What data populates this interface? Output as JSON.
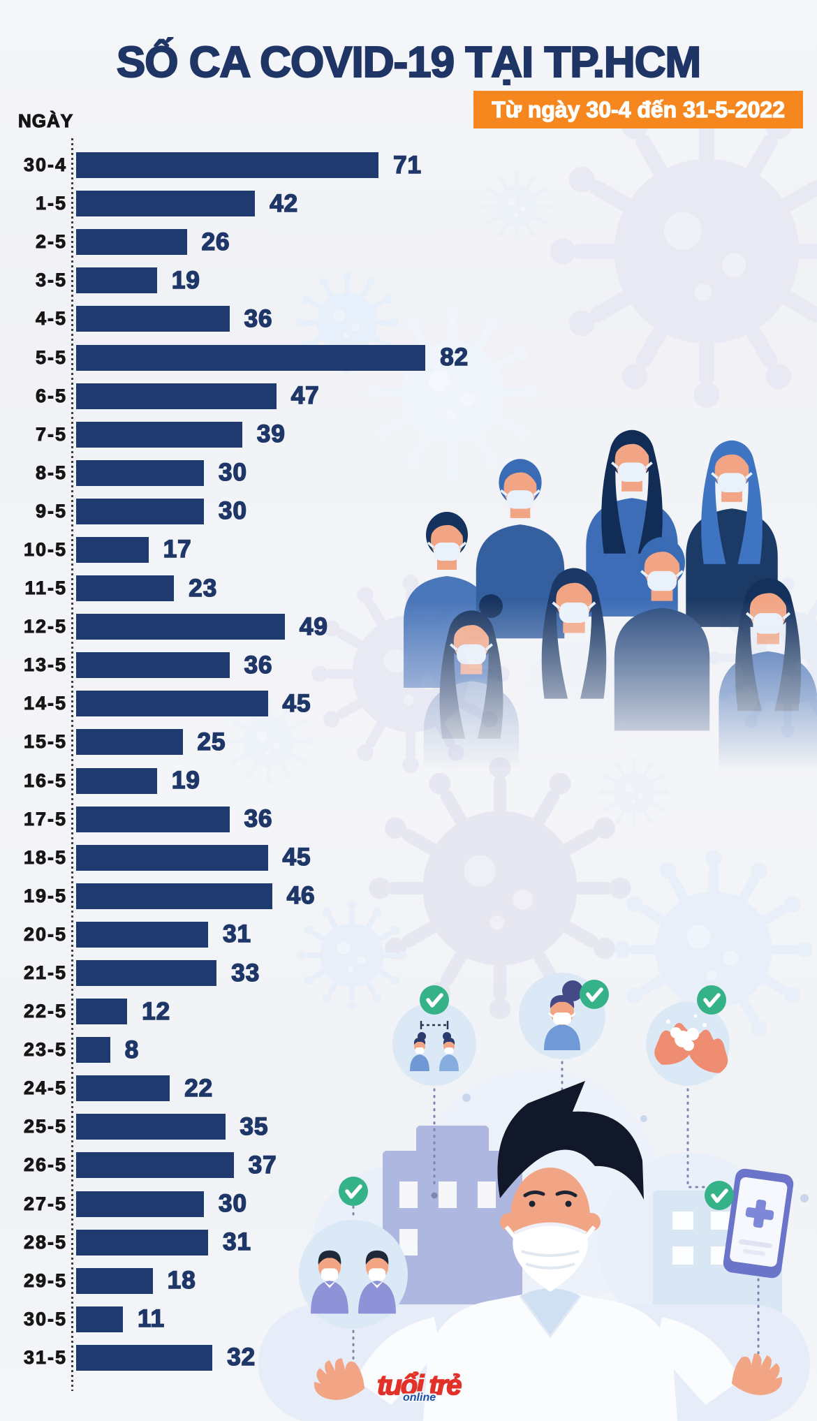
{
  "page": {
    "title": "SỐ CA COVID-19 TẠI TP.HCM",
    "subtitle_badge": "Từ ngày 30-4 đến 31-5-2022",
    "axis_label": "NGÀY",
    "source_logo": {
      "main": "tuổi trẻ",
      "sub": "online"
    }
  },
  "colors": {
    "bar": "#1f3a6e",
    "title": "#1e3566",
    "badge_bg": "#f6871f",
    "badge_text": "#ffffff",
    "date_label": "#161616",
    "value_label": "#1e3768",
    "background": "#f3f4f7",
    "check_green": "#35b287",
    "virus_pale": "#e9e9f3"
  },
  "icons": [
    "virus-icon",
    "check-icon",
    "masked-crowd-illustration",
    "doctor-mask-icon",
    "distancing-icon",
    "masked-woman-icon",
    "hand-washing-icon",
    "two-men-masks-icon",
    "medical-phone-icon"
  ],
  "chart_data": {
    "type": "bar",
    "orientation": "horizontal",
    "title": "SỐ CA COVID-19 TẠI TP.HCM",
    "subtitle": "Từ ngày 30-4 đến 31-5-2022",
    "ylabel": "NGÀY",
    "xlabel": "",
    "grid": false,
    "xlim": [
      0,
      90
    ],
    "value_labels": true,
    "legend_position": "none",
    "categories": [
      "30-4",
      "1-5",
      "2-5",
      "3-5",
      "4-5",
      "5-5",
      "6-5",
      "7-5",
      "8-5",
      "9-5",
      "10-5",
      "11-5",
      "12-5",
      "13-5",
      "14-5",
      "15-5",
      "16-5",
      "17-5",
      "18-5",
      "19-5",
      "20-5",
      "21-5",
      "22-5",
      "23-5",
      "24-5",
      "25-5",
      "26-5",
      "27-5",
      "28-5",
      "29-5",
      "30-5",
      "31-5"
    ],
    "values": [
      71,
      42,
      26,
      19,
      36,
      82,
      47,
      39,
      30,
      30,
      17,
      23,
      49,
      36,
      45,
      25,
      19,
      36,
      45,
      46,
      31,
      33,
      12,
      8,
      22,
      35,
      37,
      30,
      31,
      18,
      11,
      32
    ]
  }
}
